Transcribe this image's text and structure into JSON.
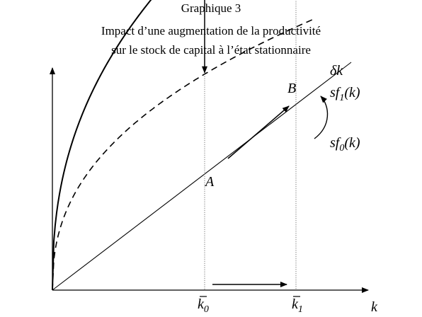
{
  "title": {
    "line1": "Graphique 3",
    "line2": "Impact d’une augmentation de la productivité",
    "line3": "sur le stock de capital à l’état stationnaire"
  },
  "chart_data": {
    "type": "line",
    "xlabel": "k",
    "ylabel": "",
    "grid": false,
    "series": [
      {
        "name": "δk",
        "kind": "straight-line",
        "slope": 1
      },
      {
        "name": "sf1(k)",
        "kind": "concave-curve",
        "style": "solid",
        "scale": 1.0
      },
      {
        "name": "sf0(k)",
        "kind": "concave-curve",
        "style": "dashed",
        "scale": 0.62
      }
    ],
    "points": [
      {
        "label": "A",
        "at": "k0"
      },
      {
        "label": "B",
        "at": "k1"
      }
    ],
    "ticks": {
      "k0": "k",
      "k0_sub": "0",
      "k1": "k",
      "k1_sub": "1"
    },
    "labels": {
      "delta_k": "δk",
      "sf1_main": "sf",
      "sf1_sub": "1",
      "sf1_arg": "(k)",
      "sf0_main": "sf",
      "sf0_sub": "0",
      "sf0_arg": "(k)",
      "point_a": "A",
      "point_b": "B",
      "x_axis": "k"
    }
  }
}
